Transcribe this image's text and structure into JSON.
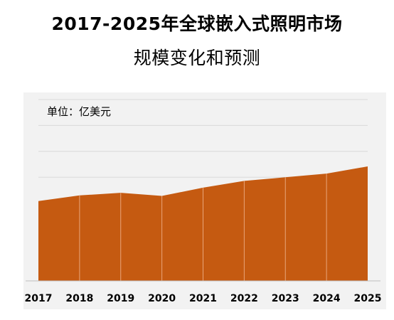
{
  "title": {
    "line1": "2017-2025年全球嵌入式照明市场",
    "line2": "规模变化和预测"
  },
  "unit_label": "单位：亿美元",
  "colors": {
    "area_fill": "#C55A11",
    "panel_bg": "#F2F2F2",
    "gridline": "#D9D9D9",
    "divider": "#E8A57A"
  },
  "chart_data": {
    "type": "area",
    "title": "2017-2025年全球嵌入式照明市场规模变化和预测",
    "unit": "单位：亿美元",
    "x": [
      "2017",
      "2018",
      "2019",
      "2020",
      "2021",
      "2022",
      "2023",
      "2024",
      "2025"
    ],
    "series": [
      {
        "values": [
          15.4,
          16.5,
          17.0,
          16.4,
          18.0,
          19.3,
          20.0,
          20.7,
          22.1
        ]
      }
    ],
    "ylim": [
      0,
      35
    ],
    "grid": true,
    "legend": "none"
  }
}
